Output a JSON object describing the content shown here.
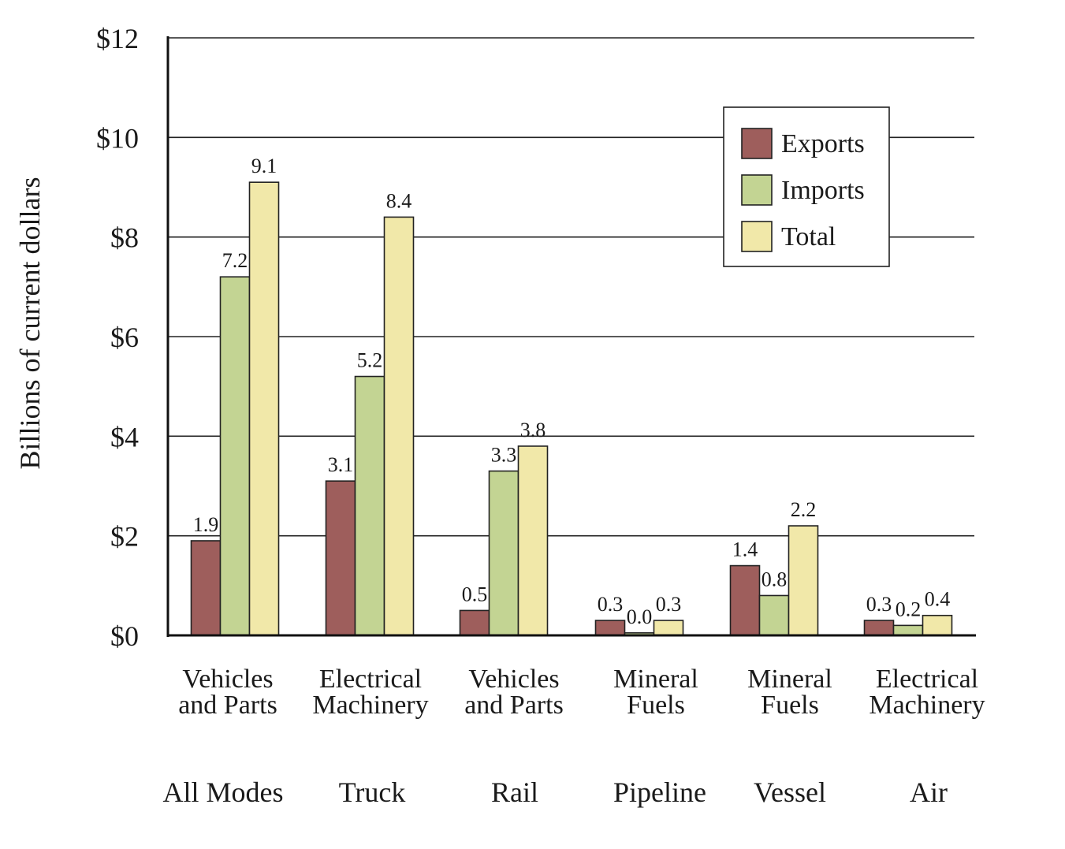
{
  "chart_data": {
    "type": "bar",
    "ylabel": "Billions of current dollars",
    "ylim": [
      0,
      12
    ],
    "yticks": [
      0,
      2,
      4,
      6,
      8,
      10,
      12
    ],
    "ytick_labels": [
      "$0",
      "$2",
      "$4",
      "$6",
      "$8",
      "$10",
      "$12"
    ],
    "grid": true,
    "legend": "top-right",
    "categories": [
      {
        "line1": "Vehicles",
        "line2": "and Parts",
        "mode": "All Modes"
      },
      {
        "line1": "Electrical",
        "line2": "Machinery",
        "mode": "Truck"
      },
      {
        "line1": "Vehicles",
        "line2": "and Parts",
        "mode": "Rail"
      },
      {
        "line1": "Mineral",
        "line2": "Fuels",
        "mode": "Pipeline"
      },
      {
        "line1": "Mineral",
        "line2": "Fuels",
        "mode": "Vessel"
      },
      {
        "line1": "Electrical",
        "line2": "Machinery",
        "mode": "Air"
      }
    ],
    "series": [
      {
        "name": "Exports",
        "color": "#9e5e5c",
        "values": [
          1.9,
          3.1,
          0.5,
          0.3,
          1.4,
          0.3
        ],
        "labels": [
          "1.9",
          "3.1",
          "0.5",
          "0.3",
          "1.4",
          "0.3"
        ]
      },
      {
        "name": "Imports",
        "color": "#c3d493",
        "values": [
          7.2,
          5.2,
          3.3,
          0.05,
          0.8,
          0.2
        ],
        "labels": [
          "7.2",
          "5.2",
          "3.3",
          "0.0",
          "0.8",
          "0.2"
        ]
      },
      {
        "name": "Total",
        "color": "#f1e8a9",
        "values": [
          9.1,
          8.4,
          3.8,
          0.3,
          2.2,
          0.4
        ],
        "labels": [
          "9.1",
          "8.4",
          "3.8",
          "0.3",
          "2.2",
          "0.4"
        ]
      }
    ]
  }
}
